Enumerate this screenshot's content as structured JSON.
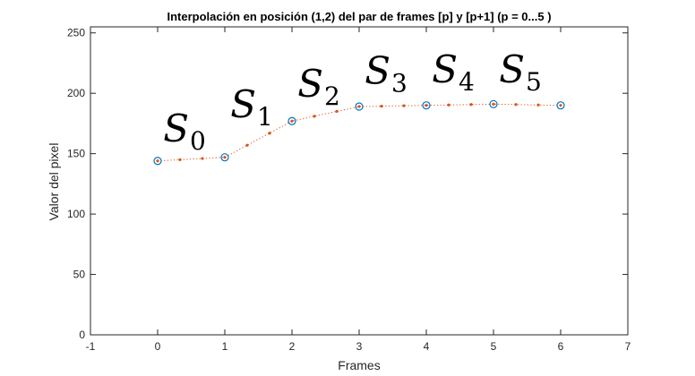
{
  "chart_data": {
    "type": "scatter",
    "title": "Interpolación en posición (1,2) del par de frames [p] y [p+1] (p = 0...5 )",
    "xlabel": "Frames",
    "ylabel": "Valor del pixel",
    "xlim": [
      -1,
      7
    ],
    "ylim": [
      0,
      255
    ],
    "xticks": [
      -1,
      0,
      1,
      2,
      3,
      4,
      5,
      6,
      7
    ],
    "yticks": [
      0,
      50,
      100,
      150,
      200,
      250
    ],
    "grid": false,
    "series": [
      {
        "marker": "circle",
        "color": "#0072BD",
        "x": [
          0,
          1,
          2,
          3,
          4,
          5,
          6
        ],
        "y": [
          144,
          147,
          177,
          189,
          190,
          191,
          190
        ]
      },
      {
        "marker": "dot",
        "line": "dotted",
        "color": "#D95319",
        "x": [
          0,
          0.333,
          0.667,
          1,
          1.333,
          1.667,
          2,
          2.333,
          2.667,
          3,
          3.333,
          3.667,
          4,
          4.333,
          4.667,
          5,
          5.333,
          5.667,
          6
        ],
        "y": [
          144,
          145,
          146,
          147,
          157,
          167,
          177,
          181,
          185,
          189,
          189.3,
          189.7,
          190,
          190.3,
          190.7,
          191,
          190.7,
          190.3,
          190
        ]
      }
    ],
    "annotations": [
      {
        "base": "S",
        "sub": "0",
        "x": 0.4,
        "y": 160
      },
      {
        "base": "S",
        "sub": "1",
        "x": 1.4,
        "y": 180
      },
      {
        "base": "S",
        "sub": "2",
        "x": 2.4,
        "y": 197
      },
      {
        "base": "S",
        "sub": "3",
        "x": 3.4,
        "y": 208
      },
      {
        "base": "S",
        "sub": "4",
        "x": 4.4,
        "y": 209
      },
      {
        "base": "S",
        "sub": "5",
        "x": 5.4,
        "y": 209
      }
    ]
  }
}
